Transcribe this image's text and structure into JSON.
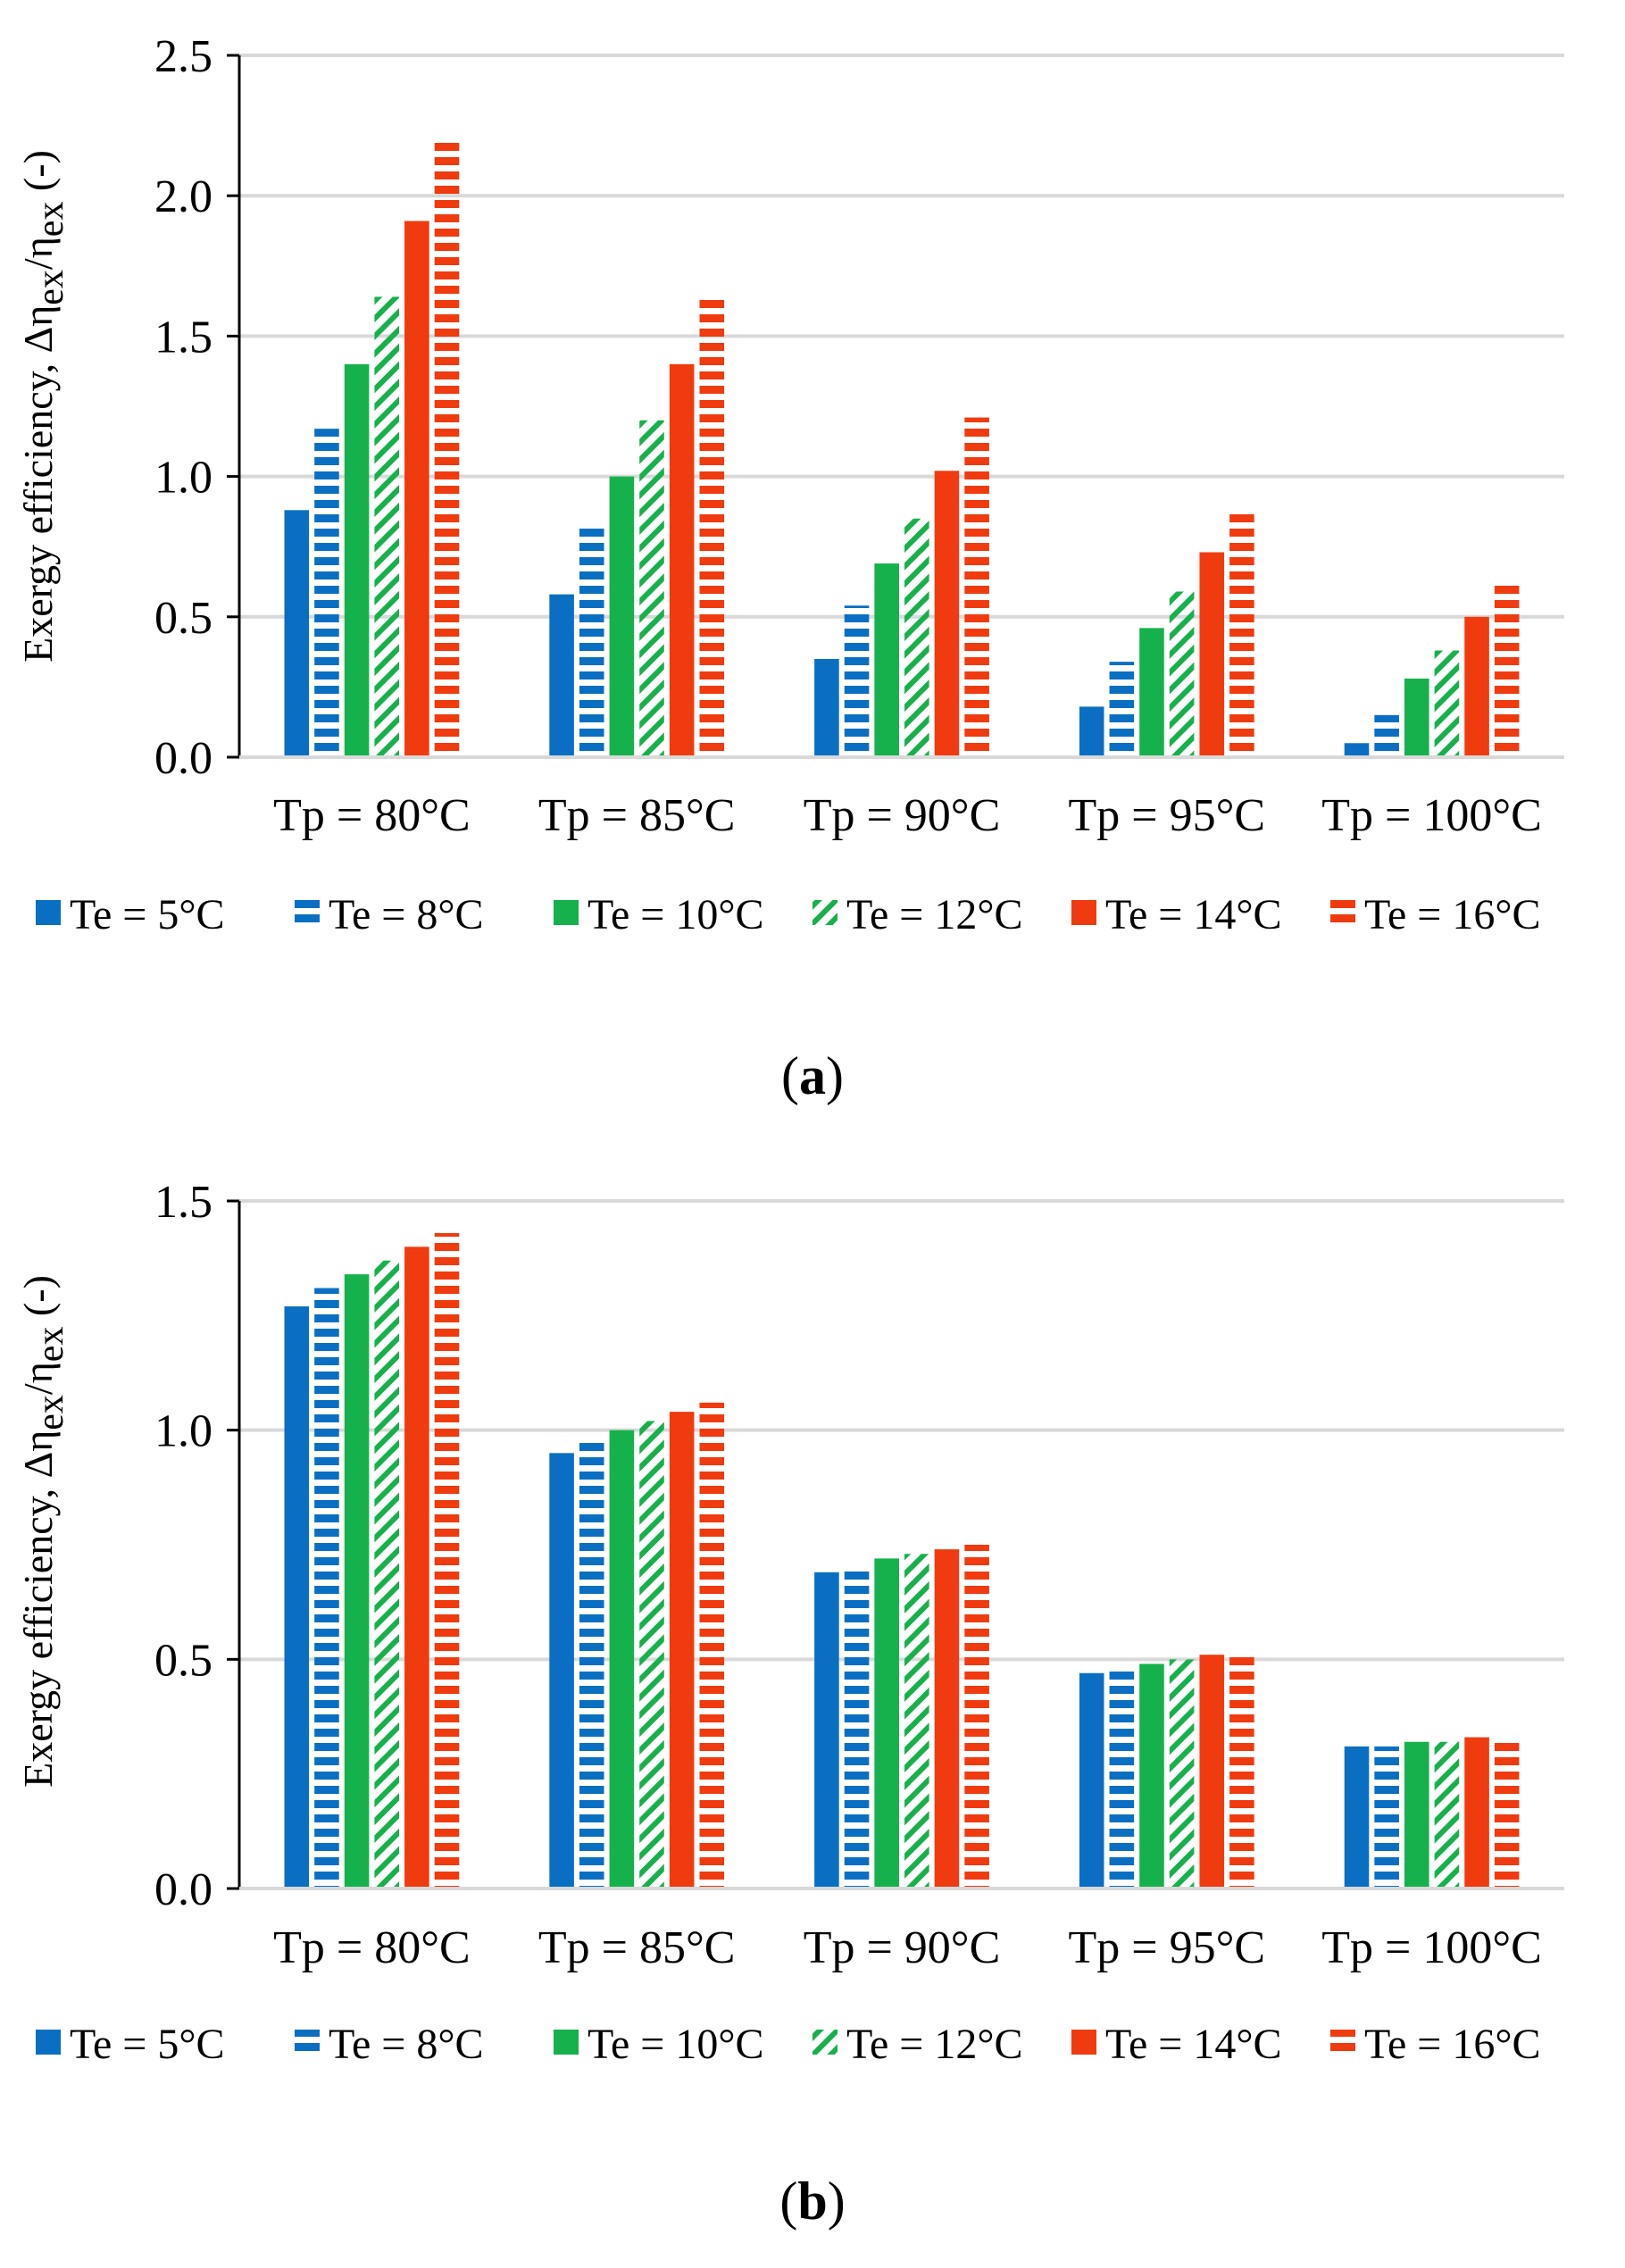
{
  "series_styles": [
    {
      "color": "#0A6FC2",
      "pattern": "solid"
    },
    {
      "color": "#0A6FC2",
      "pattern": "hstripe"
    },
    {
      "color": "#16B14C",
      "pattern": "solid"
    },
    {
      "color": "#16B14C",
      "pattern": "diag"
    },
    {
      "color": "#F03A10",
      "pattern": "solid"
    },
    {
      "color": "#F03A10",
      "pattern": "hstripe"
    }
  ],
  "chart_data": [
    {
      "type": "bar",
      "panel_label": "a",
      "ylabel": {
        "main": "Exergy efficiency, Δη",
        "sub1": "ex",
        "mid": "/η",
        "sub2": "ex",
        "end": " (-)"
      },
      "ylim": [
        0,
        2.5
      ],
      "yticks": [
        "0.0",
        "0.5",
        "1.0",
        "1.5",
        "2.0",
        "2.5"
      ],
      "grid": true,
      "legend_position": "bottom",
      "categories": [
        "Tp = 80°C",
        "Tp = 85°C",
        "Tp = 90°C",
        "Tp = 95°C",
        "Tp = 100°C"
      ],
      "series": [
        {
          "name": "Te = 5°C",
          "values": [
            0.88,
            0.58,
            0.35,
            0.18,
            0.05
          ]
        },
        {
          "name": "Te = 8°C",
          "values": [
            1.17,
            0.82,
            0.54,
            0.34,
            0.15
          ]
        },
        {
          "name": "Te = 10°C",
          "values": [
            1.4,
            1.0,
            0.69,
            0.46,
            0.28
          ]
        },
        {
          "name": "Te = 12°C",
          "values": [
            1.64,
            1.2,
            0.85,
            0.59,
            0.38
          ]
        },
        {
          "name": "Te = 14°C",
          "values": [
            1.91,
            1.4,
            1.02,
            0.73,
            0.5
          ]
        },
        {
          "name": "Te = 16°C",
          "values": [
            2.19,
            1.63,
            1.21,
            0.88,
            0.62
          ]
        }
      ]
    },
    {
      "type": "bar",
      "panel_label": "b",
      "ylabel": {
        "main": "Exergy efficiency, Δη",
        "sub1": "ex",
        "mid": "/η",
        "sub2": "ex",
        "end": " (-)"
      },
      "ylim": [
        0,
        1.5
      ],
      "yticks": [
        "0.0",
        "0.5",
        "1.0",
        "1.5"
      ],
      "grid": true,
      "legend_position": "bottom",
      "categories": [
        "Tp = 80°C",
        "Tp = 85°C",
        "Tp = 90°C",
        "Tp = 95°C",
        "Tp = 100°C"
      ],
      "series": [
        {
          "name": "Te = 5°C",
          "values": [
            1.27,
            0.95,
            0.69,
            0.47,
            0.31
          ]
        },
        {
          "name": "Te = 8°C",
          "values": [
            1.31,
            0.98,
            0.7,
            0.48,
            0.31
          ]
        },
        {
          "name": "Te = 10°C",
          "values": [
            1.34,
            1.0,
            0.72,
            0.49,
            0.32
          ]
        },
        {
          "name": "Te = 12°C",
          "values": [
            1.37,
            1.02,
            0.73,
            0.5,
            0.32
          ]
        },
        {
          "name": "Te = 14°C",
          "values": [
            1.4,
            1.04,
            0.74,
            0.51,
            0.33
          ]
        },
        {
          "name": "Te = 16°C",
          "values": [
            1.43,
            1.06,
            0.75,
            0.51,
            0.33
          ]
        }
      ]
    }
  ]
}
